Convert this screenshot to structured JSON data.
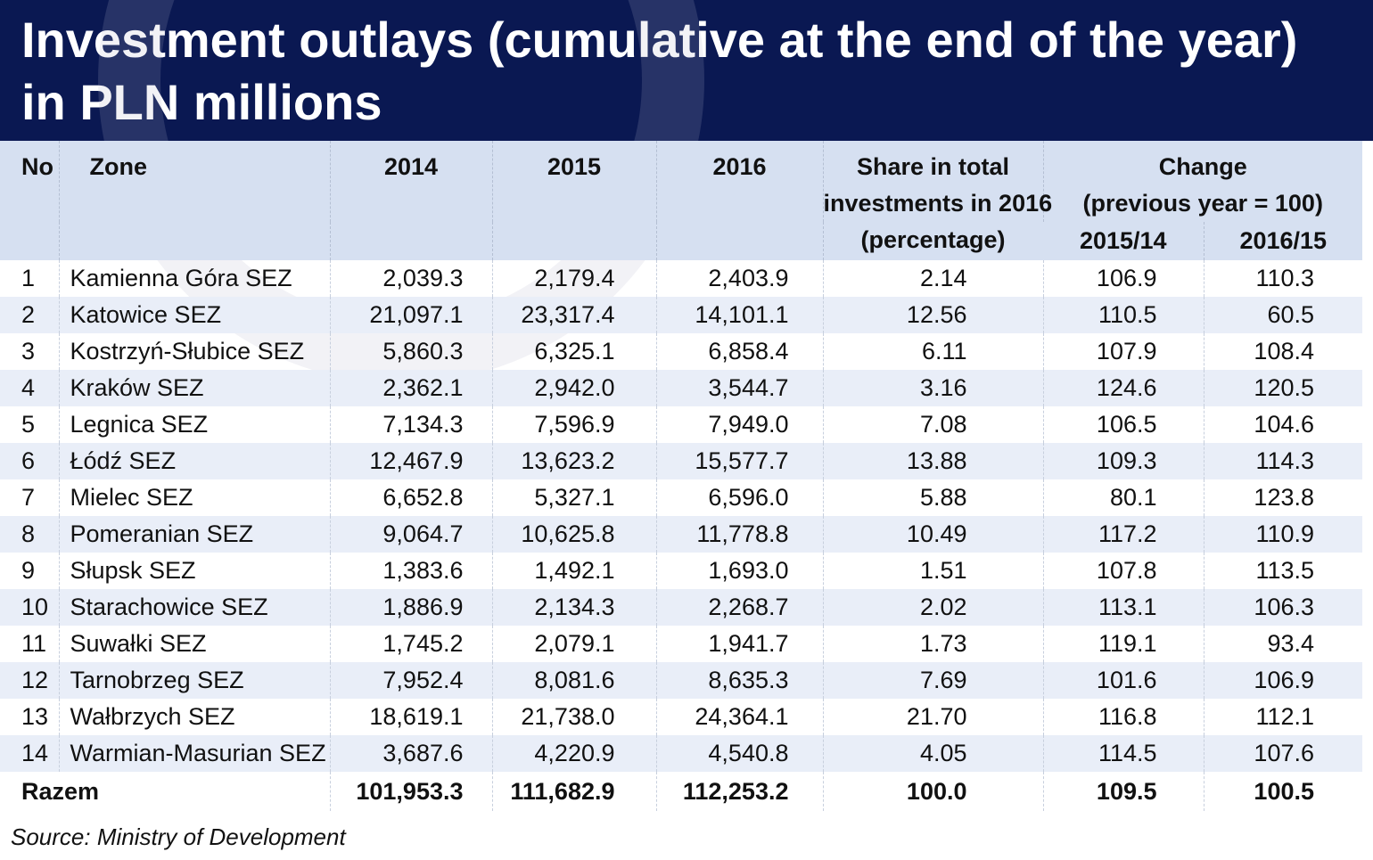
{
  "title": {
    "line1": "Investment outlays (cumulative at the end of the year)",
    "line2": "in PLN millions"
  },
  "colors": {
    "header_bg": "#0a1852",
    "header_row_bg": "#d6e0f1",
    "stripe_bg": "#e9eef8",
    "text": "#111111"
  },
  "table": {
    "headers": {
      "no": "No",
      "zone": "Zone",
      "y2014": "2014",
      "y2015": "2015",
      "y2016": "2016",
      "share_l1": "Share in total",
      "share_l2": "investments in 2016",
      "share_l3": "(percentage)",
      "change_l1": "Change",
      "change_l2": "(previous year = 100)",
      "change_a": "2015/14",
      "change_b": "2016/15"
    },
    "rows": [
      {
        "no": "1",
        "zone": "Kamienna Góra SEZ",
        "y2014": "2,039.3",
        "y2015": "2,179.4",
        "y2016": "2,403.9",
        "share": "2.14",
        "ch1": "106.9",
        "ch2": "110.3"
      },
      {
        "no": "2",
        "zone": "Katowice SEZ",
        "y2014": "21,097.1",
        "y2015": "23,317.4",
        "y2016": "14,101.1",
        "share": "12.56",
        "ch1": "110.5",
        "ch2": "60.5"
      },
      {
        "no": "3",
        "zone": "Kostrzyń-Słubice SEZ",
        "y2014": "5,860.3",
        "y2015": "6,325.1",
        "y2016": "6,858.4",
        "share": "6.11",
        "ch1": "107.9",
        "ch2": "108.4"
      },
      {
        "no": "4",
        "zone": "Kraków SEZ",
        "y2014": "2,362.1",
        "y2015": "2,942.0",
        "y2016": "3,544.7",
        "share": "3.16",
        "ch1": "124.6",
        "ch2": "120.5"
      },
      {
        "no": "5",
        "zone": "Legnica SEZ",
        "y2014": "7,134.3",
        "y2015": "7,596.9",
        "y2016": "7,949.0",
        "share": "7.08",
        "ch1": "106.5",
        "ch2": "104.6"
      },
      {
        "no": "6",
        "zone": "Łódź SEZ",
        "y2014": "12,467.9",
        "y2015": "13,623.2",
        "y2016": "15,577.7",
        "share": "13.88",
        "ch1": "109.3",
        "ch2": "114.3"
      },
      {
        "no": "7",
        "zone": "Mielec SEZ",
        "y2014": "6,652.8",
        "y2015": "5,327.1",
        "y2016": "6,596.0",
        "share": "5.88",
        "ch1": "80.1",
        "ch2": "123.8"
      },
      {
        "no": "8",
        "zone": "Pomeranian SEZ",
        "y2014": "9,064.7",
        "y2015": "10,625.8",
        "y2016": "11,778.8",
        "share": "10.49",
        "ch1": "117.2",
        "ch2": "110.9"
      },
      {
        "no": "9",
        "zone": "Słupsk SEZ",
        "y2014": "1,383.6",
        "y2015": "1,492.1",
        "y2016": "1,693.0",
        "share": "1.51",
        "ch1": "107.8",
        "ch2": "113.5"
      },
      {
        "no": "10",
        "zone": "Starachowice SEZ",
        "y2014": "1,886.9",
        "y2015": "2,134.3",
        "y2016": "2,268.7",
        "share": "2.02",
        "ch1": "113.1",
        "ch2": "106.3"
      },
      {
        "no": "11",
        "zone": "Suwałki SEZ",
        "y2014": "1,745.2",
        "y2015": "2,079.1",
        "y2016": "1,941.7",
        "share": "1.73",
        "ch1": "119.1",
        "ch2": "93.4"
      },
      {
        "no": "12",
        "zone": "Tarnobrzeg SEZ",
        "y2014": "7,952.4",
        "y2015": "8,081.6",
        "y2016": "8,635.3",
        "share": "7.69",
        "ch1": "101.6",
        "ch2": "106.9"
      },
      {
        "no": "13",
        "zone": "Wałbrzych SEZ",
        "y2014": "18,619.1",
        "y2015": "21,738.0",
        "y2016": "24,364.1",
        "share": "21.70",
        "ch1": "116.8",
        "ch2": "112.1"
      },
      {
        "no": "14",
        "zone": "Warmian-Masurian SEZ",
        "y2014": "3,687.6",
        "y2015": "4,220.9",
        "y2016": "4,540.8",
        "share": "4.05",
        "ch1": "114.5",
        "ch2": "107.6"
      }
    ],
    "total": {
      "label": "Razem",
      "y2014": "101,953.3",
      "y2015": "111,682.9",
      "y2016": "112,253.2",
      "share": "100.0",
      "ch1": "109.5",
      "ch2": "100.5"
    }
  },
  "source": "Source: Ministry of Development"
}
